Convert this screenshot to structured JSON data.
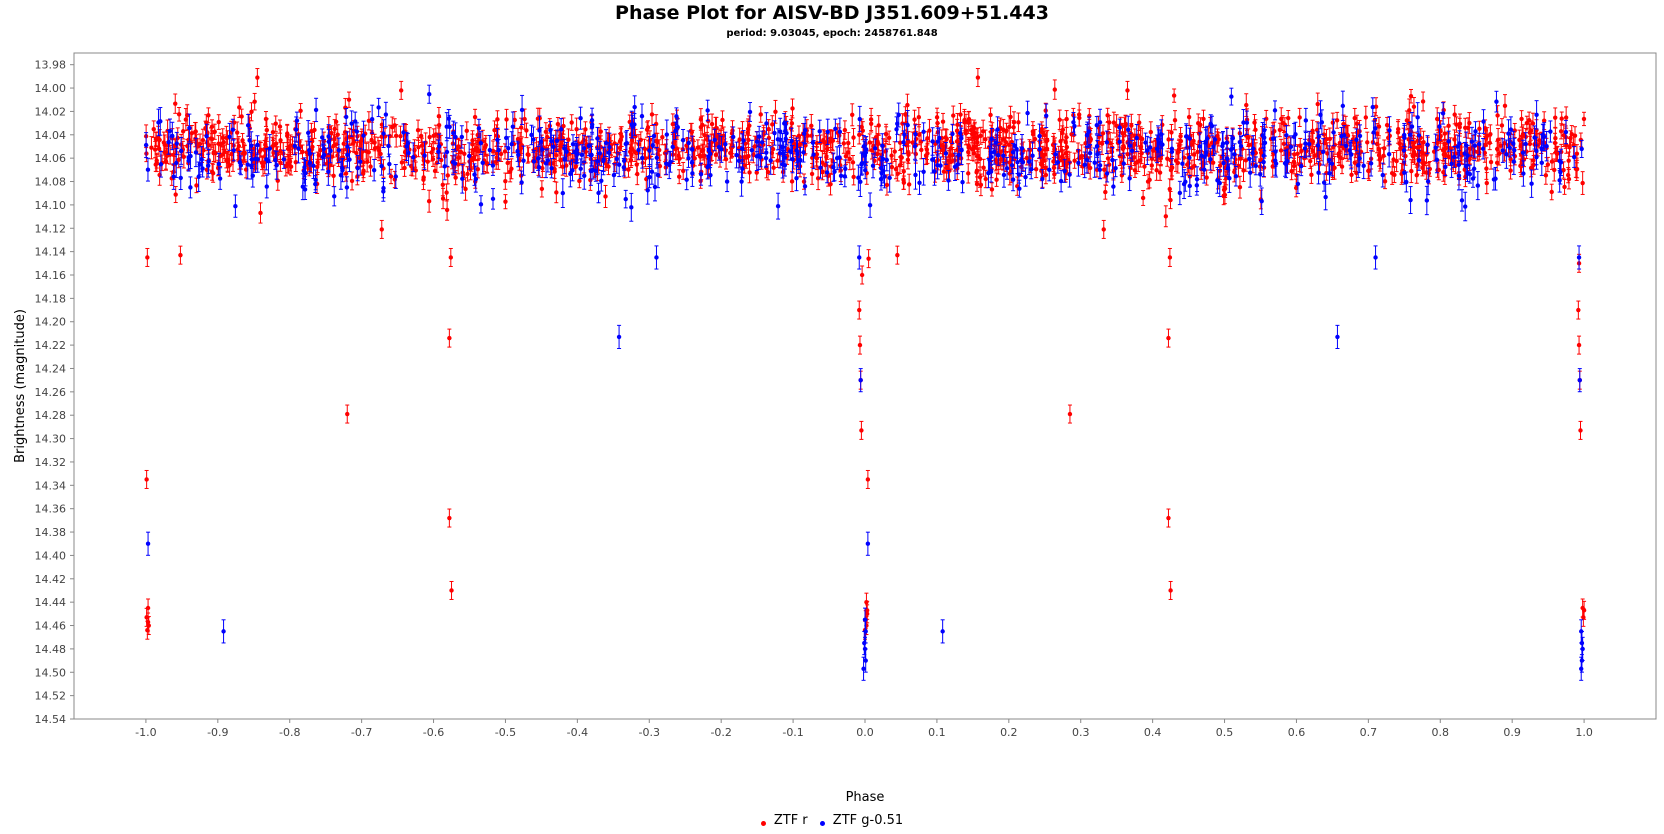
{
  "title": "Phase Plot for AISV-BD J351.609+51.443",
  "subtitle": "period: 9.03045, epoch: 2458761.848",
  "chart_data": {
    "type": "scatter",
    "title": "Phase Plot for AISV-BD J351.609+51.443",
    "subtitle": "period: 9.03045, epoch: 2458761.848",
    "xlabel": "Phase",
    "ylabel": "Brightness (magnitude)",
    "xlim": [
      -1.1,
      1.1
    ],
    "ylim": [
      14.54,
      13.97
    ],
    "y_inverted": true,
    "grid": false,
    "legend_position": "bottom",
    "x_ticks": [
      "-1.0",
      "-0.9",
      "-0.8",
      "-0.7",
      "-0.6",
      "-0.5",
      "-0.4",
      "-0.3",
      "-0.2",
      "-0.1",
      "0.0",
      "0.1",
      "0.2",
      "0.3",
      "0.4",
      "0.5",
      "0.6",
      "0.7",
      "0.8",
      "0.9",
      "1.0"
    ],
    "y_ticks": [
      "13.98",
      "14.00",
      "14.02",
      "14.04",
      "14.06",
      "14.08",
      "14.10",
      "14.12",
      "14.14",
      "14.16",
      "14.18",
      "14.20",
      "14.22",
      "14.24",
      "14.26",
      "14.28",
      "14.30",
      "14.32",
      "14.34",
      "14.36",
      "14.38",
      "14.40",
      "14.42",
      "14.44",
      "14.46",
      "14.48",
      "14.50",
      "14.52",
      "14.54"
    ],
    "series": [
      {
        "name": "ZTF r",
        "color": "#ff0000",
        "error": 0.007,
        "band": {
          "x_from": -1.0,
          "x_to": 1.0,
          "y_center": 14.052,
          "y_spread": 0.028
        },
        "dips": [
          {
            "x": -0.58,
            "depth": 0.07
          },
          {
            "x": -0.5,
            "depth": 0.04
          },
          {
            "x": 0.42,
            "depth": 0.07
          },
          {
            "x": 0.5,
            "depth": 0.04
          }
        ],
        "points": [
          [
            -0.998,
            14.145
          ],
          [
            -0.952,
            14.143
          ],
          [
            -0.845,
            13.991
          ],
          [
            -0.72,
            14.279
          ],
          [
            -0.672,
            14.121
          ],
          [
            -0.645,
            14.002
          ],
          [
            -0.578,
            14.214
          ],
          [
            -0.578,
            14.368
          ],
          [
            -0.575,
            14.43
          ],
          [
            -0.576,
            14.145
          ],
          [
            -0.999,
            14.335
          ],
          [
            -0.997,
            14.445
          ],
          [
            -0.999,
            14.453
          ],
          [
            -0.996,
            14.46
          ],
          [
            -0.998,
            14.464
          ],
          [
            -0.997,
            14.457
          ],
          [
            -0.008,
            14.19
          ],
          [
            -0.007,
            14.22
          ],
          [
            -0.006,
            14.25
          ],
          [
            -0.005,
            14.293
          ],
          [
            -0.004,
            14.16
          ],
          [
            0.004,
            14.335
          ],
          [
            0.005,
            14.146
          ],
          [
            0.045,
            14.143
          ],
          [
            0.002,
            14.44
          ],
          [
            0.003,
            14.45
          ],
          [
            0.001,
            14.455
          ],
          [
            0.002,
            14.46
          ],
          [
            0.0,
            14.464
          ],
          [
            0.003,
            14.447
          ],
          [
            0.157,
            13.991
          ],
          [
            0.285,
            14.279
          ],
          [
            0.332,
            14.121
          ],
          [
            0.365,
            14.002
          ],
          [
            0.422,
            14.214
          ],
          [
            0.422,
            14.368
          ],
          [
            0.425,
            14.43
          ],
          [
            0.424,
            14.145
          ],
          [
            0.992,
            14.19
          ],
          [
            0.993,
            14.22
          ],
          [
            0.994,
            14.25
          ],
          [
            0.995,
            14.293
          ],
          [
            0.993,
            14.15
          ],
          [
            0.998,
            14.445
          ],
          [
            0.999,
            14.453
          ],
          [
            1.0,
            14.447
          ]
        ]
      },
      {
        "name": "ZTF g-0.51",
        "color": "#0000ff",
        "error": 0.009,
        "band": {
          "x_from": -1.0,
          "x_to": 1.0,
          "y_center": 14.055,
          "y_spread": 0.034
        },
        "dips": [],
        "points": [
          [
            -0.997,
            14.39
          ],
          [
            -0.892,
            14.465
          ],
          [
            -0.342,
            14.213
          ],
          [
            -0.29,
            14.145
          ],
          [
            -0.008,
            14.145
          ],
          [
            -0.006,
            14.25
          ],
          [
            0.004,
            14.39
          ],
          [
            0.0,
            14.455
          ],
          [
            0.001,
            14.465
          ],
          [
            -0.001,
            14.475
          ],
          [
            0.0,
            14.48
          ],
          [
            0.001,
            14.49
          ],
          [
            -0.002,
            14.497
          ],
          [
            0.108,
            14.465
          ],
          [
            0.657,
            14.213
          ],
          [
            0.71,
            14.145
          ],
          [
            0.993,
            14.145
          ],
          [
            0.994,
            14.25
          ],
          [
            0.996,
            14.465
          ],
          [
            0.997,
            14.475
          ],
          [
            0.998,
            14.48
          ],
          [
            0.997,
            14.49
          ],
          [
            0.996,
            14.497
          ]
        ]
      }
    ]
  }
}
